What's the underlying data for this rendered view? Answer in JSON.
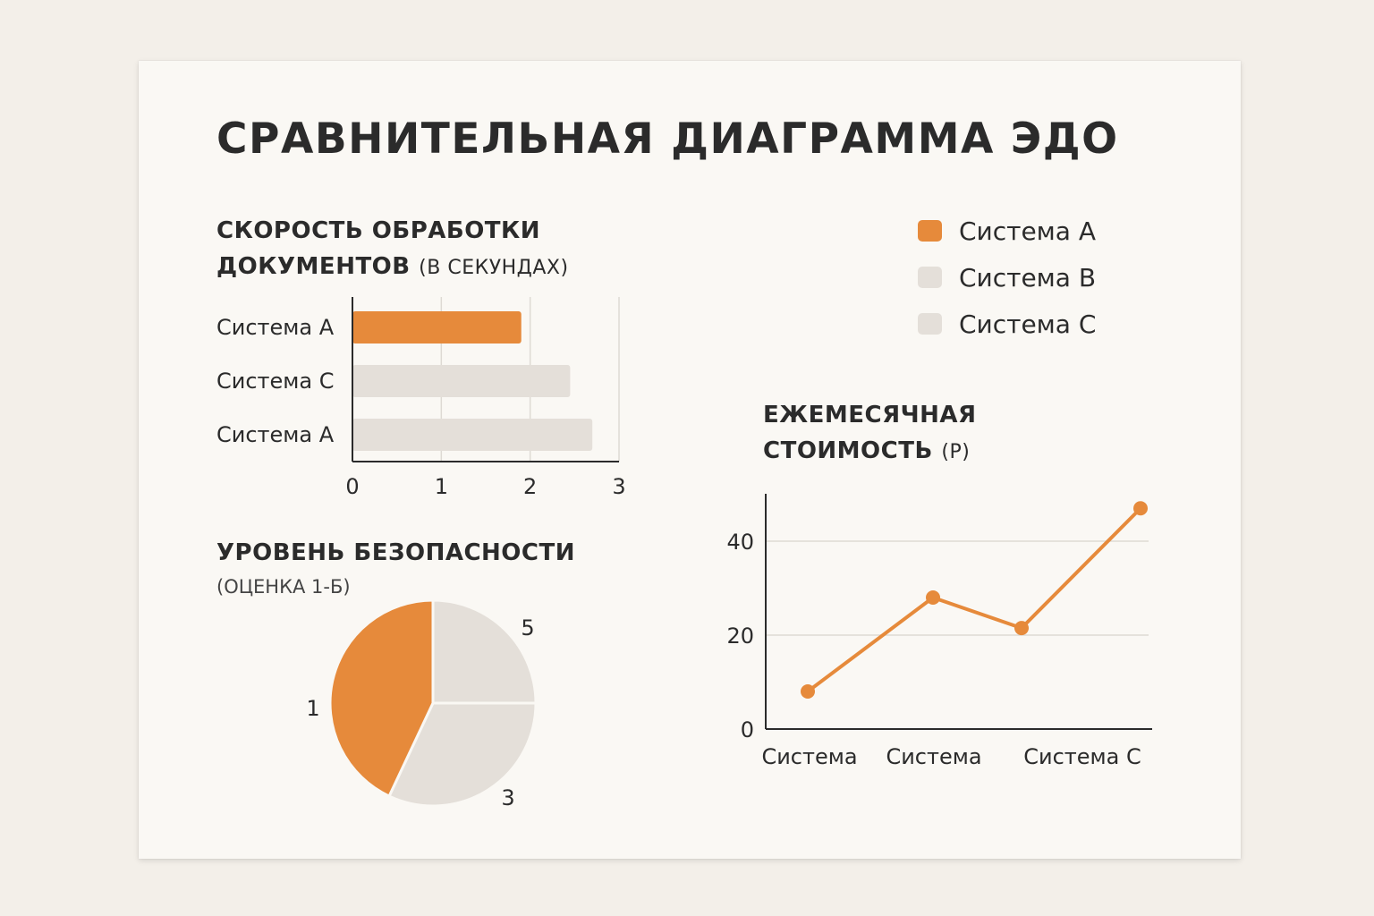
{
  "title": "СРАВНИТЕЛЬНАЯ ДИАГРАММА ЭДО",
  "colors": {
    "accent": "#e68a3b",
    "muted": "#e4dfd9",
    "grid": "#dedad4",
    "axis": "#2b2b2b"
  },
  "legend": [
    {
      "label": "Система A",
      "color": "#e68a3b"
    },
    {
      "label": "Система B",
      "color": "#e4dfd9"
    },
    {
      "label": "Система C",
      "color": "#e4dfd9"
    }
  ],
  "speed": {
    "title_line1": "СКОРОСТЬ ОБРАБОТКИ",
    "title_line2": "ДОКУМЕНТОВ",
    "title_unit": "(В СЕКУНДАХ)"
  },
  "security": {
    "title": "УРОВЕНЬ БЕЗОПАСНОСТИ",
    "subtitle": "(ОЦЕНКА 1-Б)"
  },
  "cost": {
    "title_line1": "ЕЖЕМЕСЯЧНАЯ",
    "title_line2": "СТОИМОСТЬ",
    "title_unit": "(Р)"
  },
  "chart_data": [
    {
      "type": "bar",
      "orientation": "horizontal",
      "categories": [
        "Система A",
        "Система C",
        "Система A"
      ],
      "values": [
        1.9,
        2.45,
        2.7
      ],
      "colors": [
        "#e68a3b",
        "#e4dfd9",
        "#e4dfd9"
      ],
      "xlim": [
        0,
        3
      ],
      "xticks": [
        "0",
        "1",
        "2",
        "3"
      ],
      "grid": true
    },
    {
      "type": "pie",
      "slices": [
        {
          "label": "1",
          "value": 0.43,
          "color": "#e68a3b"
        },
        {
          "label": "5",
          "value": 0.25,
          "color": "#e4dfd9"
        },
        {
          "label": "3",
          "value": 0.32,
          "color": "#e4dfd9"
        }
      ]
    },
    {
      "type": "line",
      "categories": [
        "Система",
        "Система",
        "",
        "Система C"
      ],
      "values": [
        8,
        28,
        21.5,
        47
      ],
      "color": "#e68a3b",
      "ylim": [
        0,
        50
      ],
      "yticks": [
        "0",
        "20",
        "40"
      ],
      "grid": true
    }
  ]
}
